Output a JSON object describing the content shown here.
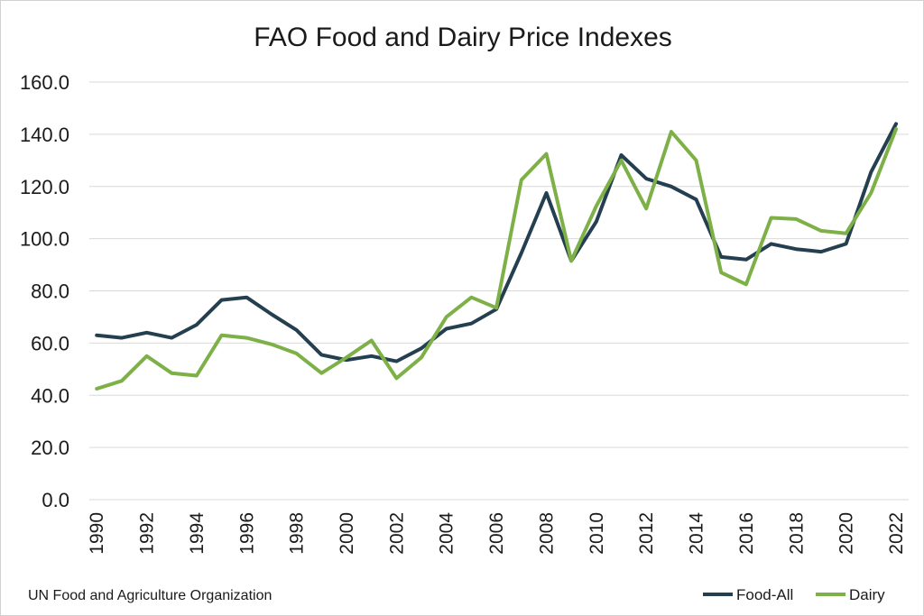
{
  "chart_data": {
    "type": "line",
    "title": "FAO Food and Dairy Price Indexes",
    "xlabel": "",
    "ylabel": "",
    "ylim": [
      0,
      160
    ],
    "yticks": [
      "0.0",
      "20.0",
      "40.0",
      "60.0",
      "80.0",
      "100.0",
      "120.0",
      "140.0",
      "160.0"
    ],
    "xticks": [
      "1990",
      "1992",
      "1994",
      "1996",
      "1998",
      "2000",
      "2002",
      "2004",
      "2006",
      "2008",
      "2010",
      "2012",
      "2014",
      "2016",
      "2018",
      "2020",
      "2022"
    ],
    "x": [
      1990,
      1991,
      1992,
      1993,
      1994,
      1995,
      1996,
      1997,
      1998,
      1999,
      2000,
      2001,
      2002,
      2003,
      2004,
      2005,
      2006,
      2007,
      2008,
      2009,
      2010,
      2011,
      2012,
      2013,
      2014,
      2015,
      2016,
      2017,
      2018,
      2019,
      2020,
      2021,
      2022
    ],
    "grid": true,
    "legend_position": "bottom-right",
    "source": "UN Food and Agriculture Organization",
    "series": [
      {
        "name": "Food-All",
        "color": "#243f4f",
        "values": [
          63.0,
          62.0,
          64.0,
          62.0,
          67.0,
          76.5,
          77.5,
          71.0,
          65.0,
          55.5,
          53.5,
          55.0,
          53.0,
          58.0,
          65.5,
          67.5,
          73.0,
          94.5,
          117.5,
          91.5,
          106.5,
          132.0,
          123.0,
          120.0,
          115.0,
          93.0,
          92.0,
          98.0,
          96.0,
          95.0,
          98.0,
          125.5,
          144.0
        ]
      },
      {
        "name": "Dairy",
        "color": "#7db046",
        "values": [
          42.5,
          45.5,
          55.0,
          48.5,
          47.5,
          63.0,
          62.0,
          59.5,
          56.0,
          48.5,
          54.5,
          61.0,
          46.5,
          54.5,
          70.0,
          77.5,
          73.5,
          122.5,
          132.5,
          91.5,
          112.5,
          130.0,
          111.5,
          141.0,
          130.0,
          87.0,
          82.5,
          108.0,
          107.5,
          103.0,
          102.0,
          117.5,
          142.0
        ]
      }
    ]
  }
}
